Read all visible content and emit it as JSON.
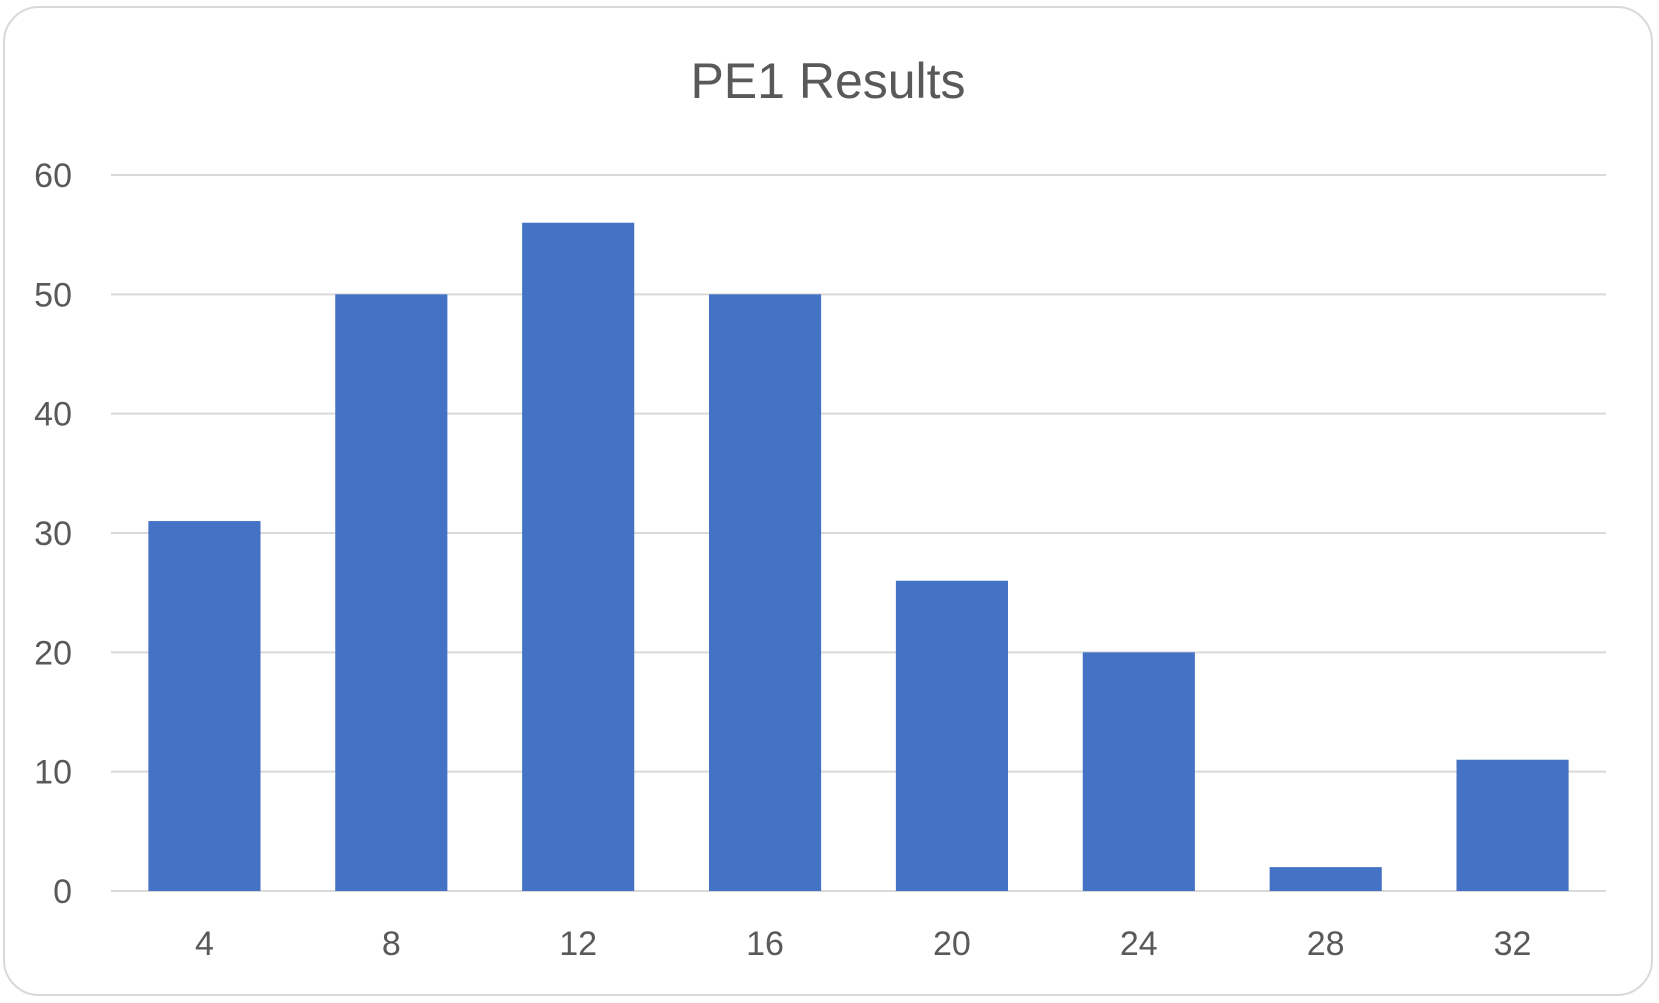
{
  "chart_data": {
    "type": "bar",
    "title": "PE1 Results",
    "xlabel": "",
    "ylabel": "",
    "categories": [
      "4",
      "8",
      "12",
      "16",
      "20",
      "24",
      "28",
      "32"
    ],
    "values": [
      31,
      50,
      56,
      50,
      26,
      20,
      2,
      11
    ],
    "ylim": [
      0,
      60
    ],
    "yticks": [
      "0",
      "10",
      "20",
      "30",
      "40",
      "50",
      "60"
    ],
    "grid": true,
    "legend": "none",
    "bar_color": "#4472C4",
    "gridline_color": "#d9d9d9",
    "text_color": "#595959"
  }
}
